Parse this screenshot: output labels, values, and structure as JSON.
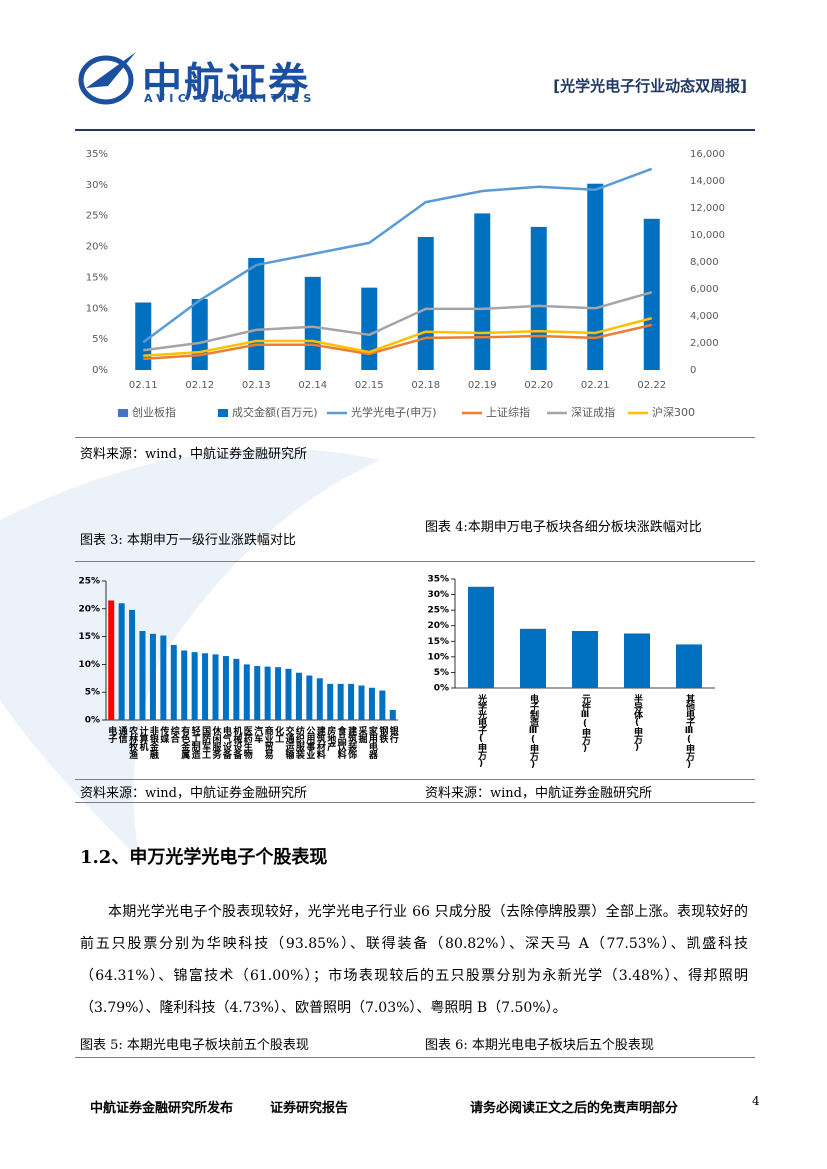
{
  "header": {
    "logo_cn": "中航证券",
    "logo_en": "AVIC SECURITIES",
    "report_title": "[光学光电子行业动态双周报]"
  },
  "chart_data": [
    {
      "type": "combo",
      "categories": [
        "02.11",
        "02.12",
        "02.13",
        "02.14",
        "02.15",
        "02.18",
        "02.19",
        "02.20",
        "02.21",
        "02.22"
      ],
      "ylim": [
        0,
        35
      ],
      "yticks": [
        {
          "value": 0,
          "label": "0%"
        },
        {
          "value": 5,
          "label": "5%"
        },
        {
          "value": 10,
          "label": "10%"
        },
        {
          "value": 15,
          "label": "15%"
        },
        {
          "value": 20,
          "label": "20%"
        },
        {
          "value": 25,
          "label": "25%"
        },
        {
          "value": 30,
          "label": "30%"
        },
        {
          "value": 35,
          "label": "35%"
        }
      ],
      "y2lim": [
        0,
        16000
      ],
      "y2ticks": [
        0,
        {
          "value": 2000,
          "label": "2,000"
        },
        {
          "value": 4000,
          "label": "4,000"
        },
        {
          "value": 6000,
          "label": "6,000"
        },
        {
          "value": 8000,
          "label": "8,000"
        },
        {
          "value": 10000,
          "label": "10,000"
        },
        {
          "value": 12000,
          "label": "12,000"
        },
        {
          "value": 14000,
          "label": "14,000"
        },
        {
          "value": 16000,
          "label": "16,000"
        }
      ],
      "series": [
        {
          "name": "创业板指",
          "type": "bar",
          "color": "#4472c4",
          "values": [
            null,
            null,
            null,
            null,
            null,
            null,
            null,
            null,
            null,
            null
          ]
        },
        {
          "name": "成交金额(百万元)",
          "type": "bar",
          "axis": "y2",
          "color": "#0070c0",
          "values": [
            5000,
            5260,
            8300,
            6900,
            6100,
            9850,
            11600,
            10600,
            13800,
            11200
          ]
        },
        {
          "name": "光学光电子(申万)",
          "type": "line",
          "color": "#5b9bd5",
          "values": [
            4.5,
            11.3,
            17.0,
            18.8,
            20.6,
            27.2,
            29.0,
            29.7,
            29.2,
            32.6
          ]
        },
        {
          "name": "上证综指",
          "type": "line",
          "color": "#ed7d31",
          "values": [
            1.8,
            2.4,
            4.1,
            4.1,
            2.6,
            5.2,
            5.3,
            5.5,
            5.2,
            7.3
          ]
        },
        {
          "name": "深证成指",
          "type": "line",
          "color": "#a5a5a5",
          "values": [
            3.2,
            4.4,
            6.5,
            7.0,
            5.7,
            9.9,
            9.9,
            10.4,
            10.0,
            12.6
          ]
        },
        {
          "name": "沪深300",
          "type": "line",
          "color": "#ffc000",
          "values": [
            2.3,
            2.9,
            4.7,
            4.7,
            2.9,
            6.2,
            6.0,
            6.3,
            6.0,
            8.4
          ]
        }
      ]
    },
    {
      "type": "bar",
      "categories": [
        "电子",
        "通信",
        "农林牧渔",
        "计算机",
        "非银金融",
        "传媒",
        "综合",
        "有色金属",
        "轻工制造",
        "国防军工",
        "休闲服务",
        "电气设备",
        "机械设备",
        "医药生物",
        "汽车",
        "商业贸易",
        "化工",
        "交通运输",
        "纺织服装",
        "公用事业",
        "建筑材料",
        "房地产",
        "食品饮料",
        "建筑装饰",
        "采掘",
        "家用电器",
        "钢铁",
        "银行"
      ],
      "values": [
        21.5,
        21,
        19.8,
        16,
        15.5,
        15.2,
        13.5,
        12.5,
        12.2,
        12,
        11.8,
        11.5,
        11,
        10,
        9.7,
        9.6,
        9.5,
        9.2,
        8.5,
        8,
        7.5,
        6.5,
        6.5,
        6.5,
        6.2,
        5.8,
        5.3,
        1.8
      ],
      "colors": [
        "#ff0000",
        "#0070c0",
        "#0070c0",
        "#0070c0",
        "#0070c0",
        "#0070c0",
        "#0070c0",
        "#0070c0",
        "#0070c0",
        "#0070c0",
        "#0070c0",
        "#0070c0",
        "#0070c0",
        "#0070c0",
        "#0070c0",
        "#0070c0",
        "#0070c0",
        "#0070c0",
        "#0070c0",
        "#0070c0",
        "#0070c0",
        "#0070c0",
        "#0070c0",
        "#0070c0",
        "#0070c0",
        "#0070c0",
        "#0070c0",
        "#0070c0"
      ],
      "ylim": [
        0,
        25
      ],
      "yticks": [
        {
          "value": 0,
          "label": "0%"
        },
        {
          "value": 5,
          "label": "5%"
        },
        {
          "value": 10,
          "label": "10%"
        },
        {
          "value": 15,
          "label": "15%"
        },
        {
          "value": 20,
          "label": "20%"
        },
        {
          "value": 25,
          "label": "25%"
        }
      ]
    },
    {
      "type": "bar",
      "categories": [
        "光学光电子(申万)",
        "电子制造Ⅲ(申万)",
        "元件Ⅲ(申万)",
        "半导体(申万)",
        "其他电子Ⅲ(申万)"
      ],
      "values": [
        32.5,
        19,
        18.3,
        17.5,
        14
      ],
      "colors": [
        "#0070c0",
        "#0070c0",
        "#0070c0",
        "#0070c0",
        "#0070c0"
      ],
      "ylim": [
        0,
        35
      ],
      "yticks": [
        {
          "value": 0,
          "label": "0%"
        },
        {
          "value": 5,
          "label": "5%"
        },
        {
          "value": 10,
          "label": "10%"
        },
        {
          "value": 15,
          "label": "15%"
        },
        {
          "value": 20,
          "label": "20%"
        },
        {
          "value": 25,
          "label": "25%"
        },
        {
          "value": 30,
          "label": "30%"
        },
        {
          "value": 35,
          "label": "35%"
        }
      ]
    }
  ],
  "source_1": "资料来源：wind，中航证券金融研究所",
  "caption_3": "图表 3: 本期申万一级行业涨跌幅对比",
  "caption_4": "图表 4:本期申万电子板块各细分板块涨跌幅对比",
  "source_3": "资料来源：wind，中航证券金融研究所",
  "source_4": "资料来源：wind，中航证券金融研究所",
  "section_heading": "1.2、申万光学光电子个股表现",
  "paragraph": "本期光学光电子个股表现较好，光学光电子行业 66 只成分股（去除停牌股票）全部上涨。表现较好的前五只股票分别为华映科技（93.85%）、联得装备（80.82%）、深天马 A（77.53%）、凯盛科技（64.31%）、锦富技术（61.00%）；市场表现较后的五只股票分别为永新光学（3.48%）、得邦照明（3.79%）、隆利科技（4.73%）、欧普照明（7.03%）、粤照明 B（7.50%）。",
  "caption_5": "图表 5: 本期光电电子板块前五个股表现",
  "caption_6": "图表 6: 本期光电电子板块后五个股表现",
  "footer": {
    "publisher": "中航证券金融研究所发布",
    "report_type": "证券研究报告",
    "disclaimer": "请务必阅读正文之后的免责声明部分",
    "page_number": "4"
  }
}
